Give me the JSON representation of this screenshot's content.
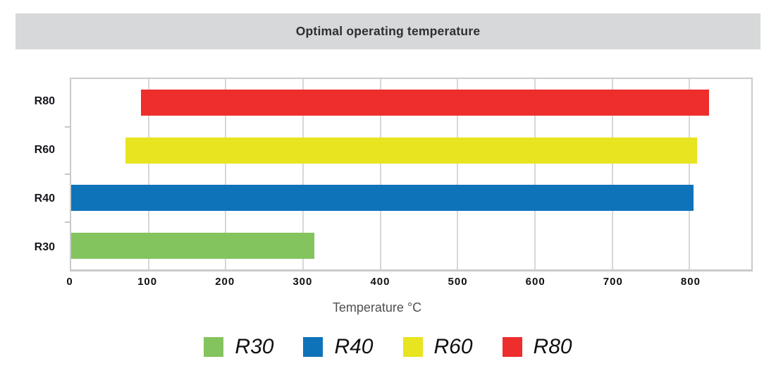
{
  "title": "Optimal operating temperature",
  "chart_data": {
    "type": "bar",
    "orientation": "horizontal",
    "title": "Optimal operating temperature",
    "xlabel": "Temperature °C",
    "xlim": [
      0,
      880
    ],
    "xticks": [
      0,
      100,
      200,
      300,
      400,
      500,
      600,
      700,
      800
    ],
    "grid": "vertical-only",
    "legend_position": "bottom",
    "rows_top_to_bottom": [
      {
        "label": "R80",
        "start": 90,
        "end": 825,
        "color": "#EE2D2D"
      },
      {
        "label": "R60",
        "start": 70,
        "end": 810,
        "color": "#E8E41F"
      },
      {
        "label": "R40",
        "start": 0,
        "end": 805,
        "color": "#0E73B9"
      },
      {
        "label": "R30",
        "start": 0,
        "end": 315,
        "color": "#84C45E"
      }
    ],
    "legend": [
      {
        "label": "R30",
        "color": "#84C45E"
      },
      {
        "label": "R40",
        "color": "#0E73B9"
      },
      {
        "label": "R60",
        "color": "#E8E41F"
      },
      {
        "label": "R80",
        "color": "#EE2D2D"
      }
    ]
  },
  "colors": {
    "title_bar_bg": "#D6D8D9",
    "plot_border": "#C9CBCC",
    "gridline": "#D7D7D7",
    "tick_text": "#101010",
    "axis_label_text": "#4F4F4F"
  }
}
